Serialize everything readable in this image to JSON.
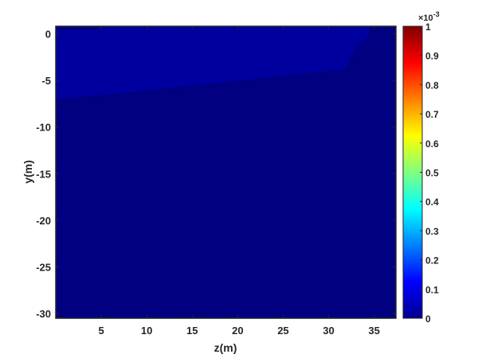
{
  "chart_data": {
    "type": "heatmap",
    "title": "",
    "xlabel": "z(m)",
    "ylabel": "y(m)",
    "xlim": [
      0,
      37.4
    ],
    "ylim": [
      -30.5,
      0.8
    ],
    "xticks": [
      5,
      10,
      15,
      20,
      25,
      30,
      35
    ],
    "yticks": [
      0,
      -5,
      -10,
      -15,
      -20,
      -25,
      -30
    ],
    "colormap": "jet",
    "background_value": 0,
    "regions": [
      {
        "value": 3e-05,
        "polygon": [
          [
            0,
            0.8
          ],
          [
            34.5,
            0.8
          ],
          [
            34.5,
            -0.2
          ],
          [
            33,
            -1.4
          ],
          [
            31.8,
            -3.8
          ],
          [
            7,
            -6.4
          ],
          [
            0,
            -7.0
          ]
        ]
      },
      {
        "value": 5e-06,
        "polygon": [
          [
            0,
            0.8
          ],
          [
            4.7,
            0.8
          ],
          [
            4.7,
            0.4
          ],
          [
            0,
            0.4
          ]
        ]
      }
    ],
    "colorbar": {
      "clim": [
        0,
        0.001
      ],
      "ticks": [
        0,
        0.1,
        0.2,
        0.3,
        0.4,
        0.5,
        0.6,
        0.7,
        0.8,
        0.9,
        1
      ],
      "tick_labels": [
        "0",
        "0.1",
        "0.2",
        "0.3",
        "0.4",
        "0.5",
        "0.6",
        "0.7",
        "0.8",
        "0.9",
        "1"
      ],
      "exponent_label": "×10",
      "exponent": "-3",
      "location": "right"
    }
  }
}
